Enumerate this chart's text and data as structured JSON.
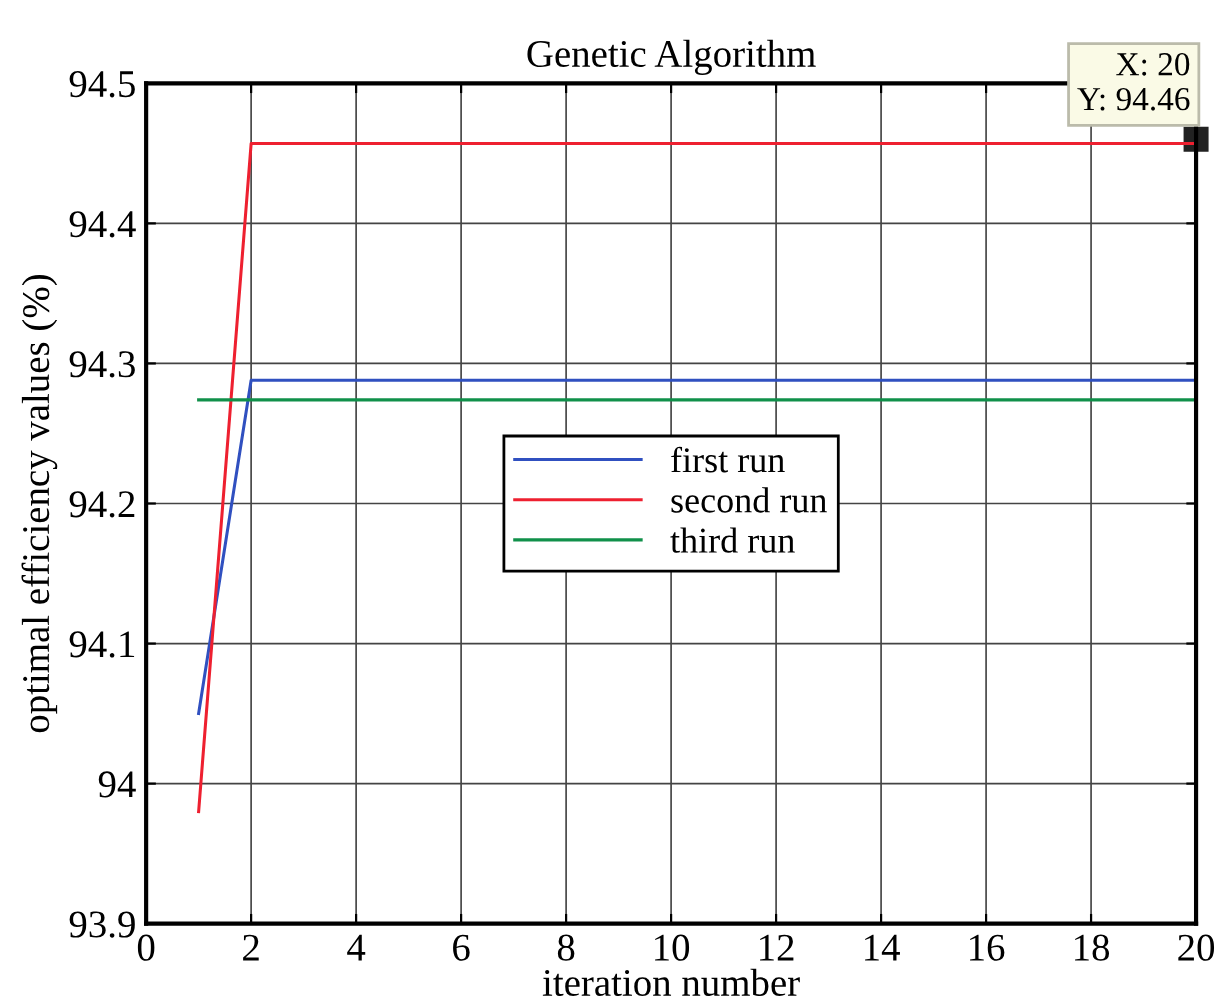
{
  "chart_data": {
    "type": "line",
    "title": "Genetic Algorithm",
    "xlabel": "iteration number",
    "ylabel": "optimal efficiency values (%)",
    "x": [
      1,
      2,
      3,
      4,
      5,
      6,
      7,
      8,
      9,
      10,
      11,
      12,
      13,
      14,
      15,
      16,
      17,
      18,
      19,
      20
    ],
    "series": [
      {
        "name": "first run",
        "color": "#3050c0",
        "values": [
          94.05,
          94.288,
          94.288,
          94.288,
          94.288,
          94.288,
          94.288,
          94.288,
          94.288,
          94.288,
          94.288,
          94.288,
          94.288,
          94.288,
          94.288,
          94.288,
          94.288,
          94.288,
          94.288,
          94.288
        ]
      },
      {
        "name": "second run",
        "color": "#ee2030",
        "values": [
          93.98,
          94.457,
          94.457,
          94.457,
          94.457,
          94.457,
          94.457,
          94.457,
          94.457,
          94.457,
          94.457,
          94.457,
          94.457,
          94.457,
          94.457,
          94.457,
          94.457,
          94.457,
          94.457,
          94.457
        ]
      },
      {
        "name": "third run",
        "color": "#10904a",
        "values": [
          94.274,
          94.274,
          94.274,
          94.274,
          94.274,
          94.274,
          94.274,
          94.274,
          94.274,
          94.274,
          94.274,
          94.274,
          94.274,
          94.274,
          94.274,
          94.274,
          94.274,
          94.274,
          94.274,
          94.274
        ]
      }
    ],
    "annotations": [
      {
        "text": "X: 20\nY: 94.46",
        "x": 20,
        "y": 94.46
      }
    ],
    "xlim": [
      0,
      20
    ],
    "xticks": [
      0,
      2,
      4,
      6,
      8,
      10,
      12,
      14,
      16,
      18,
      20
    ],
    "ylim": [
      93.9,
      94.5
    ],
    "yticks": [
      93.9,
      94,
      94.1,
      94.2,
      94.3,
      94.4,
      94.5
    ],
    "grid": true,
    "legend": "center",
    "marker": "none",
    "line_style": "solid"
  }
}
